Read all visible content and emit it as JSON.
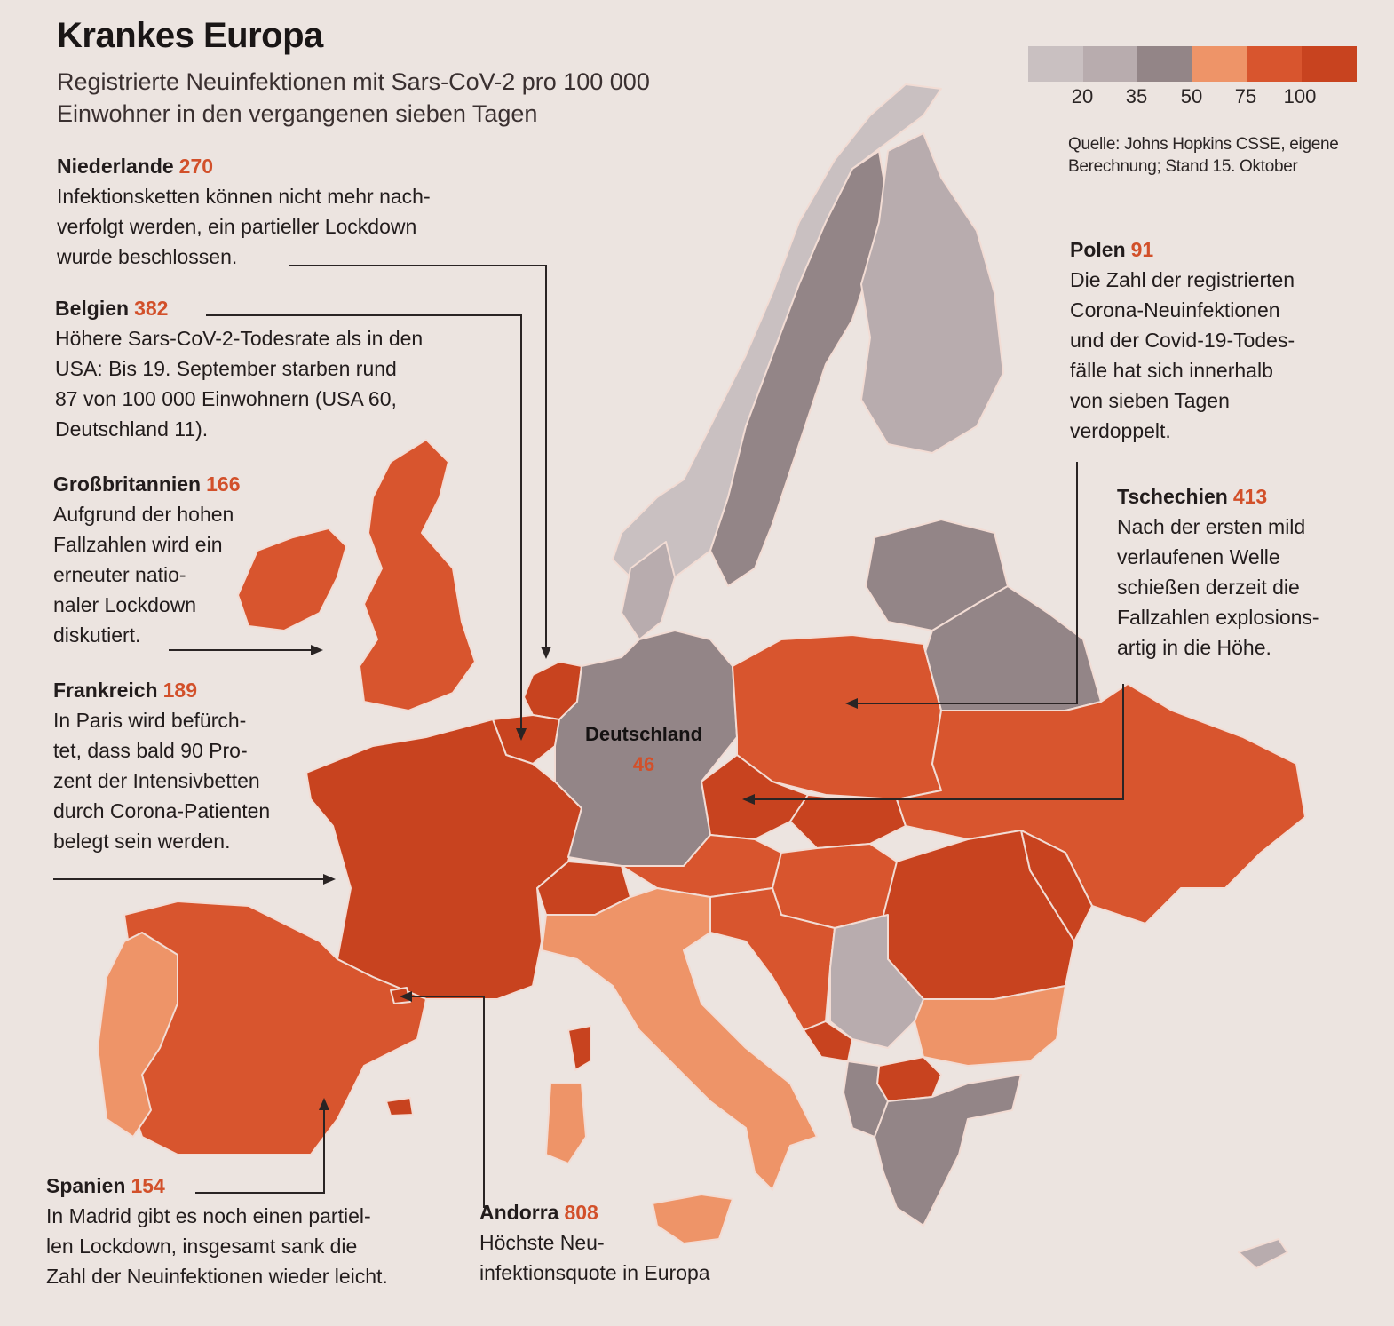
{
  "title": "Krankes Europa",
  "subtitle": "Registrierte Neuinfektionen mit Sars-CoV-2 pro 100 000 Einwohner in den vergangenen sieben Tagen",
  "legend": {
    "ticks": [
      "20",
      "35",
      "50",
      "75",
      "100"
    ],
    "colors": [
      "#c9c0c1",
      "#b8acae",
      "#938587",
      "#ee9468",
      "#d8552e",
      "#c8431f"
    ]
  },
  "source": "Quelle: Johns Hopkins CSSE, eigene Berechnung; Stand 15. Oktober",
  "map_label": {
    "name": "Deutschland",
    "value": "46"
  },
  "annotations": {
    "niederlande": {
      "country": "Niederlande",
      "value": "270",
      "text": "Infektionsketten können nicht mehr nach-\nverfolgt werden, ein partieller Lockdown\nwurde beschlossen."
    },
    "belgien": {
      "country": "Belgien",
      "value": "382",
      "text": "Höhere Sars-CoV-2-Todesrate als in den\nUSA: Bis 19. September starben rund\n87 von 100 000 Einwohnern (USA 60,\nDeutschland 11)."
    },
    "grossbritannien": {
      "country": "Großbritannien",
      "value": "166",
      "text": "Aufgrund der hohen\nFallzahlen wird ein\nerneuter natio-\nnaler Lockdown\ndiskutiert."
    },
    "frankreich": {
      "country": "Frankreich",
      "value": "189",
      "text": "In Paris wird befürch-\ntet, dass bald 90 Pro-\nzent der Intensivbetten\ndurch Corona-Patienten\nbelegt sein werden."
    },
    "spanien": {
      "country": "Spanien",
      "value": "154",
      "text": "In Madrid gibt es noch einen partiel-\nlen Lockdown, insgesamt sank die\nZahl der Neuinfektionen wieder leicht."
    },
    "andorra": {
      "country": "Andorra",
      "value": "808",
      "text": "Höchste Neu-\ninfektionsquote in Europa"
    },
    "polen": {
      "country": "Polen",
      "value": "91",
      "text": "Die Zahl der registrierten\nCorona-Neuinfektionen\nund der Covid-19-Todes-\nfälle hat sich innerhalb\nvon sieben Tagen\nverdoppelt."
    },
    "tschechien": {
      "country": "Tschechien",
      "value": "413",
      "text": "Nach der ersten mild\nverlaufenen Welle\nschießen derzeit die\nFallzahlen explosions-\nartig in die Höhe."
    }
  }
}
